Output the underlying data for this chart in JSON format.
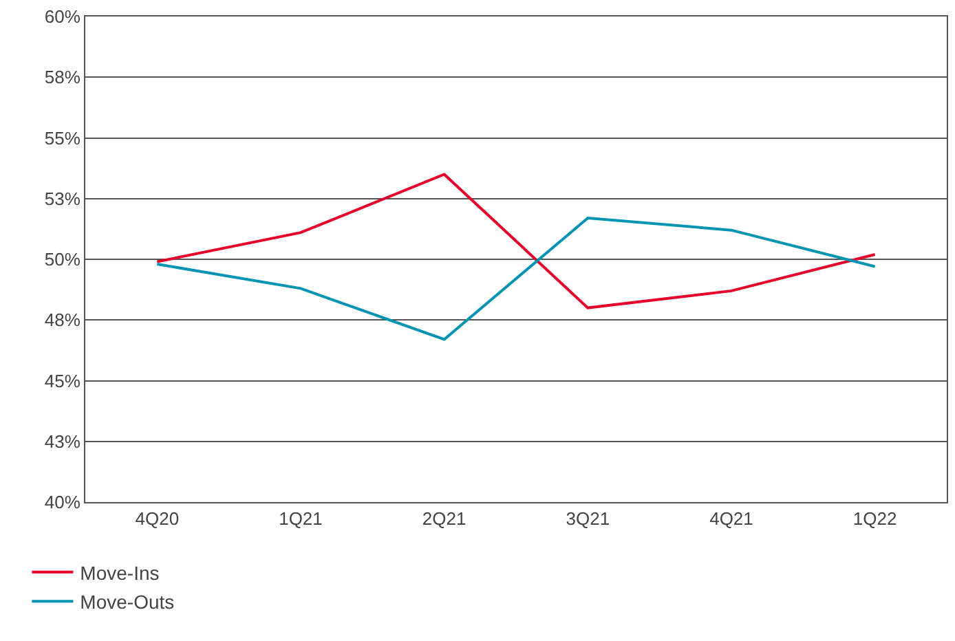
{
  "chart_data": {
    "type": "line",
    "categories": [
      "4Q20",
      "1Q21",
      "2Q21",
      "3Q21",
      "4Q21",
      "1Q22"
    ],
    "series": [
      {
        "name": "Move-Ins",
        "color": "#e4002b",
        "values": [
          49.9,
          51.1,
          53.5,
          48.0,
          48.7,
          50.2
        ]
      },
      {
        "name": "Move-Outs",
        "color": "#0093b2",
        "values": [
          49.8,
          48.8,
          46.7,
          51.7,
          51.2,
          49.7
        ]
      }
    ],
    "ylim": [
      40,
      60
    ],
    "yticks": [
      {
        "value": 40,
        "label": "40%"
      },
      {
        "value": 42.5,
        "label": "43%"
      },
      {
        "value": 45,
        "label": "45%"
      },
      {
        "value": 47.5,
        "label": "48%"
      },
      {
        "value": 50,
        "label": "50%"
      },
      {
        "value": 52.5,
        "label": "53%"
      },
      {
        "value": 55,
        "label": "55%"
      },
      {
        "value": 57.5,
        "label": "58%"
      },
      {
        "value": 60,
        "label": "60%"
      }
    ],
    "grid": "y",
    "legend": "bottom left",
    "marker": "none",
    "line_style": "solid"
  }
}
